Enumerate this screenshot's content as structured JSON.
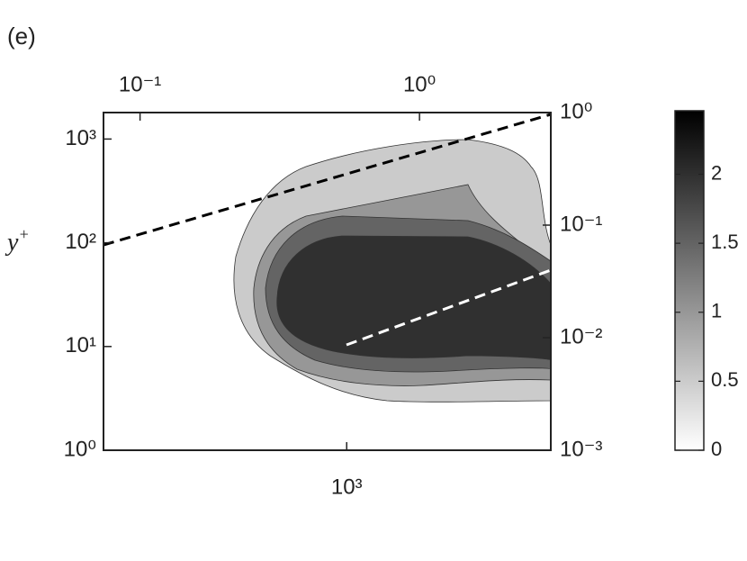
{
  "chart_data": {
    "type": "contour",
    "panel_label": "(e)",
    "ylabel": "y",
    "ylabel_sup": "+",
    "log_scale": true,
    "xlim": [
      135,
      5370
    ],
    "xticks": [
      {
        "value": 1000,
        "label": "10³"
      }
    ],
    "x2lim": [
      0.074,
      2.95
    ],
    "x2ticks": [
      {
        "value": 0.1,
        "label": "10⁻¹"
      },
      {
        "value": 1,
        "label": "10⁰"
      }
    ],
    "ylim": [
      1,
      1800
    ],
    "yticks": [
      {
        "value": 1,
        "label": "10⁰"
      },
      {
        "value": 10,
        "label": "10¹"
      },
      {
        "value": 100,
        "label": "10²"
      },
      {
        "value": 1000,
        "label": "10³"
      }
    ],
    "y2lim": [
      0.001,
      1
    ],
    "y2ticks": [
      {
        "value": 0.001,
        "label": "10⁻³"
      },
      {
        "value": 0.01,
        "label": "10⁻²"
      },
      {
        "value": 0.1,
        "label": "10⁻¹"
      },
      {
        "value": 1,
        "label": "10⁰"
      }
    ],
    "contour_levels": [
      0.5,
      1,
      1.5,
      2
    ],
    "colorbar": {
      "lim": [
        0,
        2.46
      ],
      "ticks": [
        0,
        0.5,
        1,
        1.5,
        2
      ]
    }
  }
}
